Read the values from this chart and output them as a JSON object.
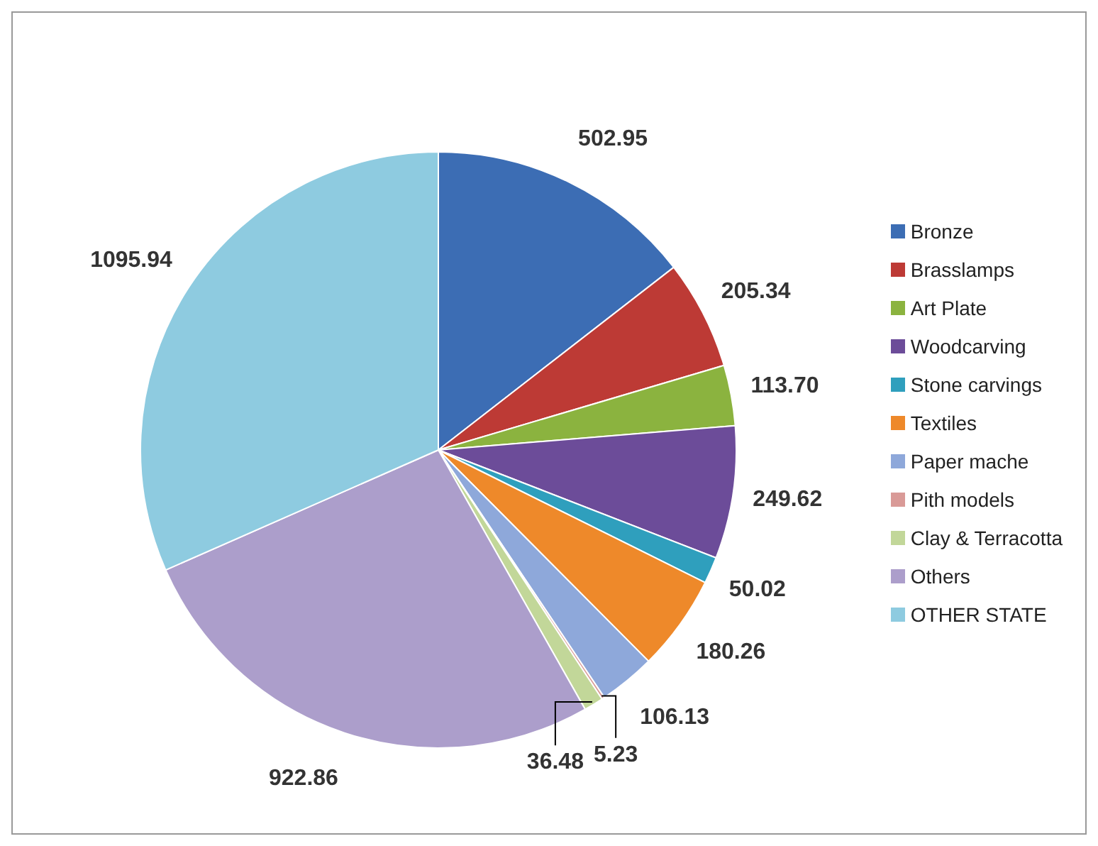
{
  "chart_data": {
    "type": "pie",
    "categories": [
      "Bronze",
      "Brasslamps",
      "Art Plate",
      "Woodcarving",
      "Stone carvings",
      "Textiles",
      "Paper mache",
      "Pith models",
      "Clay & Terracotta",
      "Others",
      "OTHER STATE"
    ],
    "values": [
      502.95,
      205.34,
      113.7,
      249.62,
      50.02,
      180.26,
      106.13,
      5.23,
      36.48,
      922.86,
      1095.94
    ],
    "value_labels": [
      "502.95",
      "205.34",
      "113.70",
      "249.62",
      "50.02",
      "180.26",
      "106.13",
      "5.23",
      "36.48",
      "922.86",
      "1095.94"
    ],
    "colors": [
      "#3c6db4",
      "#bd3a35",
      "#8bb33f",
      "#6c4c99",
      "#2f9fbd",
      "#ee892a",
      "#8ea8da",
      "#d99a97",
      "#c2d799",
      "#ac9ecb",
      "#8ecbe0"
    ],
    "legend": "right"
  }
}
